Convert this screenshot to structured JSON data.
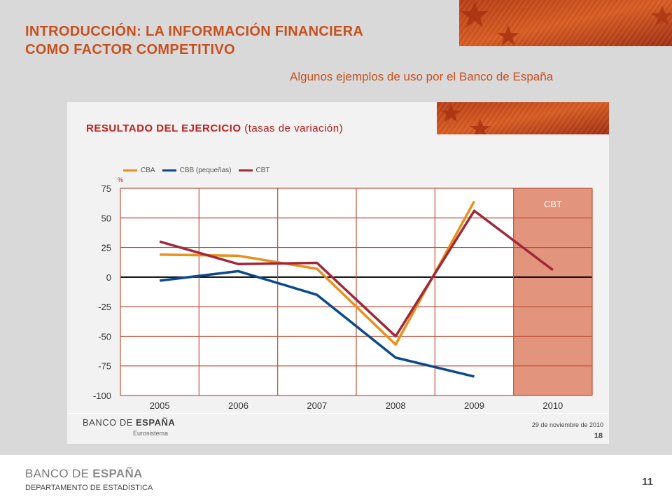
{
  "header": {
    "title_line1": "INTRODUCCIÓN: LA INFORMACIÓN FINANCIERA",
    "title_line2": "COMO FACTOR COMPETITIVO",
    "subtitle": "Algunos ejemplos de uso por el Banco de España"
  },
  "panel": {
    "title": "RESULTADO DEL EJERCICIO",
    "title_note": "(tasas de variación)",
    "unit": "%",
    "region_label": "CBT",
    "logo_main_light": "BANCO DE ",
    "logo_main_bold": "ESPAÑA",
    "logo_sub": "Eurosistema",
    "date": "29 de noviembre de 2010",
    "page": "18"
  },
  "colors": {
    "CBA": "#e8901a",
    "CBB": "#0a4a8a",
    "CBT": "#a02838",
    "grid": "#c0503a",
    "shade": "#e2947c",
    "accent": "#c8501f"
  },
  "chart_data": {
    "type": "line",
    "title": "RESULTADO DEL EJERCICIO (tasas de variación)",
    "ylabel": "%",
    "categories": [
      "2005",
      "2006",
      "2007",
      "2008",
      "2009",
      "2010"
    ],
    "ylim": [
      -100,
      75
    ],
    "yticks": [
      75,
      50,
      25,
      0,
      -25,
      -50,
      -75,
      -100
    ],
    "grid": true,
    "legend_position": "top-left",
    "shaded_region": {
      "category": "2010",
      "label": "CBT"
    },
    "series": [
      {
        "name": "CBA",
        "values": [
          19,
          18,
          7,
          -57,
          64,
          null
        ]
      },
      {
        "name": "CBB (pequeñas)",
        "values": [
          -3,
          5,
          -15,
          -68,
          -84,
          null
        ]
      },
      {
        "name": "CBT",
        "values": [
          30,
          11,
          12,
          -50,
          56,
          6
        ]
      }
    ]
  },
  "footer": {
    "logo_light": "BANCO DE ",
    "logo_bold": "ESPAÑA",
    "department": "DEPARTAMENTO  DE ESTADÍSTICA",
    "page": "11"
  }
}
